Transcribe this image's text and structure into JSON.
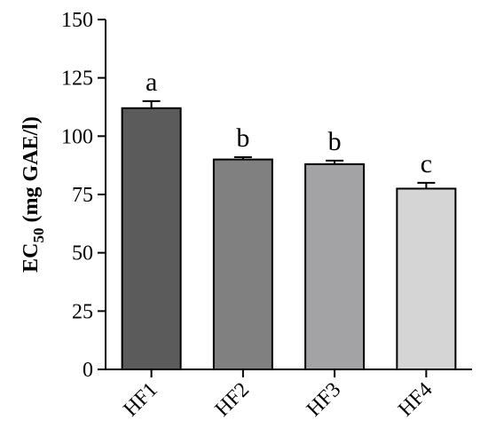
{
  "chart_data": {
    "type": "bar",
    "categories": [
      "HF1",
      "HF2",
      "HF3",
      "HF4"
    ],
    "values": [
      112,
      90,
      88,
      77.5
    ],
    "errors": [
      3,
      1,
      1.5,
      2.5
    ],
    "significance_letters": [
      "a",
      "b",
      "b",
      "c"
    ],
    "bar_colors": [
      "#5b5b5b",
      "#808080",
      "#a3a3a5",
      "#d5d5d5"
    ],
    "ylabel": {
      "main": "EC",
      "sub": "50",
      "unit": " (mg GAE/l)"
    },
    "xlabel": "",
    "ylim": [
      0,
      150
    ],
    "yticks": [
      "0",
      "25",
      "50",
      "75",
      "100",
      "125",
      "150"
    ],
    "grid": false
  }
}
